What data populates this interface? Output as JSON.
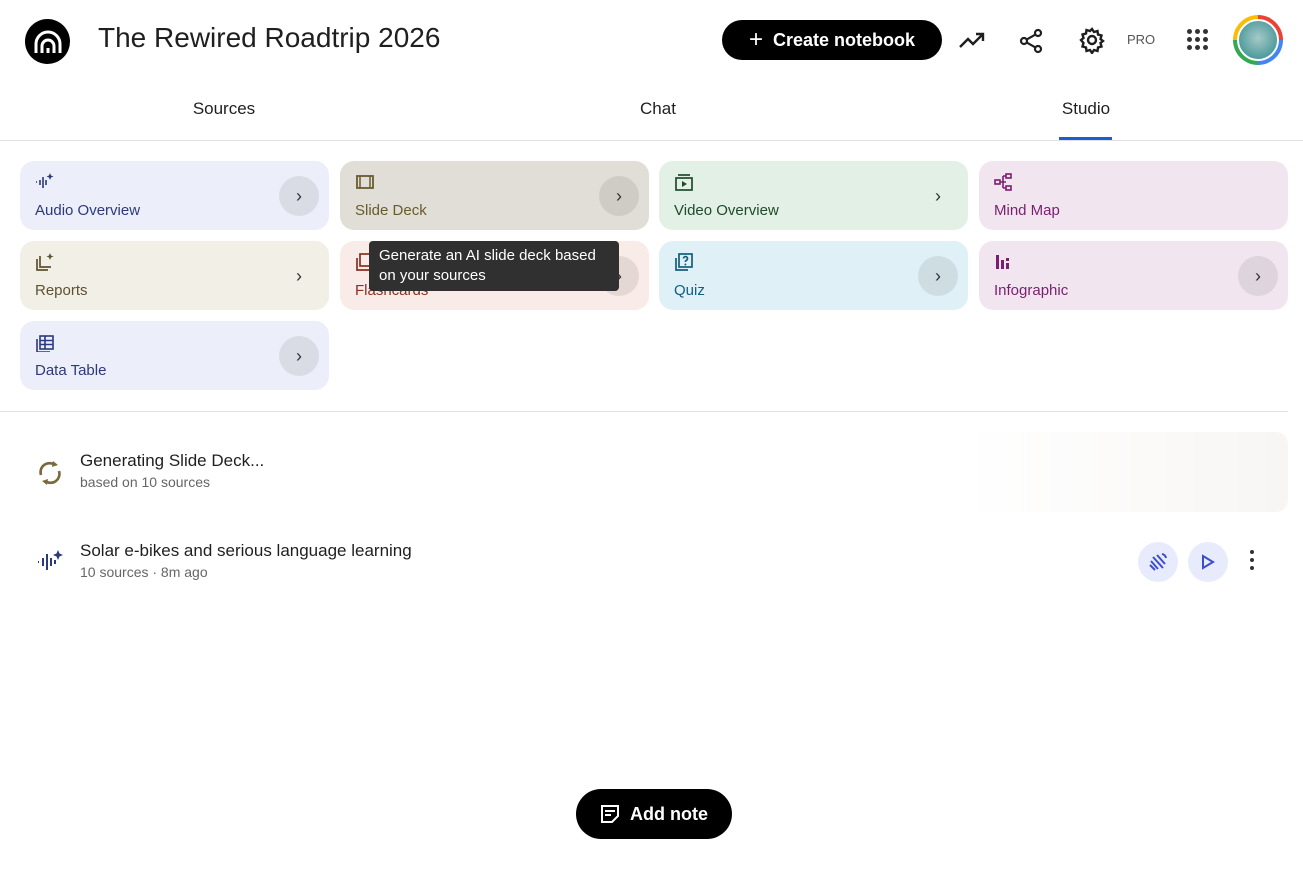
{
  "header": {
    "title": "The Rewired Roadtrip 2026",
    "create_label": "Create notebook",
    "pro_label": "PRO"
  },
  "tabs": [
    {
      "label": "Sources"
    },
    {
      "label": "Chat"
    },
    {
      "label": "Studio",
      "active": true
    }
  ],
  "accent_color": "#1a5fd1",
  "studio_cards": [
    {
      "label": "Audio Overview",
      "icon": "audio-waveform-sparkle-icon",
      "bg": "#eceff9",
      "color": "#2b3a7a"
    },
    {
      "label": "Slide Deck",
      "icon": "slides-icon",
      "bg": "#e0ded6",
      "color": "#6b5a2e"
    },
    {
      "label": "Video Overview",
      "icon": "video-icon",
      "bg": "#e2f0e5",
      "color": "#1f4a2c"
    },
    {
      "label": "Mind Map",
      "icon": "mind-map-icon",
      "bg": "#f1e6f0",
      "color": "#7a1f6e"
    },
    {
      "label": "Reports",
      "icon": "report-sparkle-icon",
      "bg": "#f1efe6",
      "color": "#5e5230"
    },
    {
      "label": "Flashcards",
      "icon": "flashcards-icon",
      "bg": "#f8ebe8",
      "color": "#8a2f22"
    },
    {
      "label": "Quiz",
      "icon": "quiz-icon",
      "bg": "#dff0f6",
      "color": "#155d7d"
    },
    {
      "label": "Infographic",
      "icon": "infographic-icon",
      "bg": "#f1e6f0",
      "color": "#7a1f6e"
    },
    {
      "label": "Data Table",
      "icon": "table-icon",
      "bg": "#eceff9",
      "color": "#2b3a7a"
    }
  ],
  "tooltip": "Generate an AI slide deck based on your sources",
  "items": [
    {
      "title": "Generating Slide Deck...",
      "subtitle": "based on 10 sources",
      "icon": "sync-icon"
    },
    {
      "title": "Solar e-bikes and serious language learning",
      "subtitle": "10 sources · 8m ago",
      "icon": "audio-waveform-sparkle-icon"
    }
  ],
  "add_note_label": "Add note"
}
